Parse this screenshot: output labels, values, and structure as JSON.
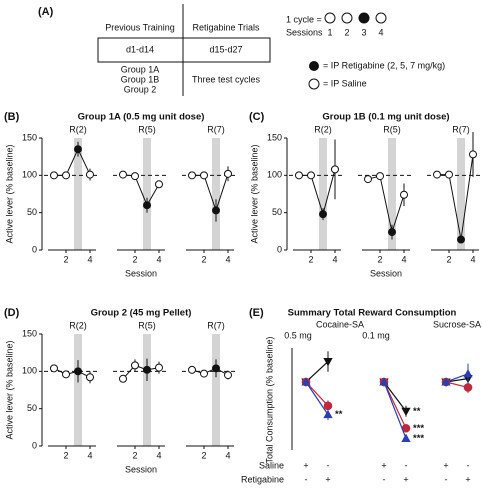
{
  "panel_a": {
    "label": "(A)",
    "table": {
      "headers": [
        "Previous Training",
        "Retigabine Trials"
      ],
      "row": [
        "d1-d14",
        "d15-d27"
      ],
      "groups": [
        "Group 1A",
        "Group 1B",
        "Group 2"
      ],
      "cycles": "Three test cycles"
    },
    "cycle": {
      "label": "1 cycle =",
      "sessions_label": "Sessions",
      "sessions": [
        "1",
        "2",
        "3",
        "4"
      ]
    },
    "legend": [
      "= IP Retigabine (2, 5, 7 mg/kg)",
      "= IP Saline"
    ]
  },
  "chart_data": [
    {
      "type": "line",
      "label": "(B)",
      "title": "Group 1A (0.5 mg unit dose)",
      "ylabel": "Active lever (% baseline)",
      "xlabel": "Session",
      "ylim": [
        0,
        150
      ],
      "yticks": [
        0,
        50,
        100,
        150
      ],
      "xlim": [
        0.5,
        4.5
      ],
      "xticks": [
        2,
        4
      ],
      "baseline": 100,
      "highlight_x": 3,
      "filled": [
        false,
        false,
        true,
        false
      ],
      "subplots": [
        {
          "title": "R(2)",
          "x": [
            1,
            2,
            3,
            4
          ],
          "values": [
            100,
            100,
            135,
            101
          ],
          "errors": [
            null,
            null,
            10,
            8
          ]
        },
        {
          "title": "R(5)",
          "x": [
            1,
            2,
            3,
            4
          ],
          "values": [
            101,
            99,
            60,
            88
          ],
          "errors": [
            null,
            null,
            10,
            5
          ]
        },
        {
          "title": "R(7)",
          "x": [
            1,
            2,
            3,
            4
          ],
          "values": [
            100,
            100,
            53,
            102
          ],
          "errors": [
            null,
            null,
            15,
            10
          ]
        }
      ]
    },
    {
      "type": "line",
      "label": "(C)",
      "title": "Group 1B (0.1 mg unit dose)",
      "ylabel": "Active lever (% baseline)",
      "xlabel": "Session",
      "ylim": [
        0,
        150
      ],
      "yticks": [
        0,
        50,
        100,
        150
      ],
      "xlim": [
        0.5,
        4.5
      ],
      "xticks": [
        2,
        4
      ],
      "baseline": 100,
      "highlight_x": 3,
      "filled": [
        false,
        false,
        true,
        false
      ],
      "subplots": [
        {
          "title": "R(2)",
          "x": [
            1,
            2,
            3,
            4
          ],
          "values": [
            100,
            100,
            48,
            108
          ],
          "errors": [
            null,
            null,
            8,
            40
          ]
        },
        {
          "title": "R(5)",
          "x": [
            1,
            2,
            3,
            4
          ],
          "values": [
            95,
            99,
            24,
            74
          ],
          "errors": [
            null,
            null,
            10,
            15
          ]
        },
        {
          "title": "R(7)",
          "x": [
            1,
            2,
            3,
            4
          ],
          "values": [
            101,
            101,
            14,
            128
          ],
          "errors": [
            null,
            null,
            null,
            30
          ]
        }
      ]
    },
    {
      "type": "line",
      "label": "(D)",
      "title": "Group 2 (45 mg Pellet)",
      "ylabel": "Active lever (% baseline)",
      "xlabel": "Session",
      "ylim": [
        0,
        150
      ],
      "yticks": [
        0,
        50,
        100,
        150
      ],
      "xlim": [
        0.5,
        4.5
      ],
      "xticks": [
        2,
        4
      ],
      "baseline": 100,
      "highlight_x": 3,
      "filled": [
        false,
        false,
        true,
        false
      ],
      "subplots": [
        {
          "title": "R(2)",
          "x": [
            1,
            2,
            3,
            4
          ],
          "values": [
            104,
            96,
            100,
            92
          ],
          "errors": [
            null,
            null,
            15,
            8
          ]
        },
        {
          "title": "R(5)",
          "x": [
            1,
            2,
            3,
            4
          ],
          "values": [
            90,
            108,
            102,
            105
          ],
          "errors": [
            null,
            8,
            15,
            8
          ]
        },
        {
          "title": "R(7)",
          "x": [
            1,
            2,
            3,
            4
          ],
          "values": [
            102,
            97,
            104,
            95
          ],
          "errors": [
            null,
            null,
            12,
            6
          ]
        }
      ]
    },
    {
      "type": "group-line",
      "label": "(E)",
      "title": "Summary Total Reward Consumption",
      "ylabel": "Total Consumption (% baseline)",
      "ylim": [
        0,
        150
      ],
      "headers": [
        "Cocaine-SA",
        "Sucrose-SA"
      ],
      "groups": [
        {
          "label": "0.5 mg",
          "series": [
            {
              "color": "#111111",
              "marker": "triangle-down",
              "values": [
                100,
                130
              ],
              "errors": [
                null,
                15
              ],
              "annotations": [
                null,
                null
              ]
            },
            {
              "color": "#c0283c",
              "marker": "circle",
              "values": [
                100,
                65
              ],
              "errors": [
                null,
                8
              ],
              "annotations": [
                null,
                null
              ]
            },
            {
              "color": "#2a3fb0",
              "marker": "triangle-up",
              "values": [
                100,
                52
              ],
              "errors": [
                null,
                8
              ],
              "annotations": [
                null,
                "**"
              ]
            }
          ]
        },
        {
          "label": "0.1 mg",
          "series": [
            {
              "color": "#111111",
              "marker": "triangle-down",
              "values": [
                100,
                57
              ],
              "errors": [
                null,
                8
              ],
              "annotations": [
                null,
                "**"
              ]
            },
            {
              "color": "#c0283c",
              "marker": "circle",
              "values": [
                100,
                32
              ],
              "errors": [
                null,
                5
              ],
              "annotations": [
                null,
                "***"
              ]
            },
            {
              "color": "#2a3fb0",
              "marker": "triangle-up",
              "values": [
                100,
                17
              ],
              "errors": [
                null,
                4
              ],
              "annotations": [
                null,
                "***"
              ]
            }
          ]
        },
        {
          "label": null,
          "series": [
            {
              "color": "#111111",
              "marker": "triangle-down",
              "values": [
                100,
                105
              ],
              "errors": [
                null,
                8
              ],
              "annotations": [
                null,
                null
              ]
            },
            {
              "color": "#c0283c",
              "marker": "circle",
              "values": [
                100,
                92
              ],
              "errors": [
                null,
                8
              ],
              "annotations": [
                null,
                null
              ]
            },
            {
              "color": "#2a3fb0",
              "marker": "triangle-up",
              "values": [
                100,
                112
              ],
              "errors": [
                null,
                15
              ],
              "annotations": [
                null,
                null
              ]
            }
          ]
        }
      ],
      "xrows": [
        {
          "label": "Saline",
          "marks": [
            "+",
            "-",
            "+",
            "-",
            "+",
            "-"
          ]
        },
        {
          "label": "Retigabine",
          "marks": [
            "-",
            "+",
            "-",
            "+",
            "-",
            "+"
          ]
        }
      ]
    }
  ]
}
